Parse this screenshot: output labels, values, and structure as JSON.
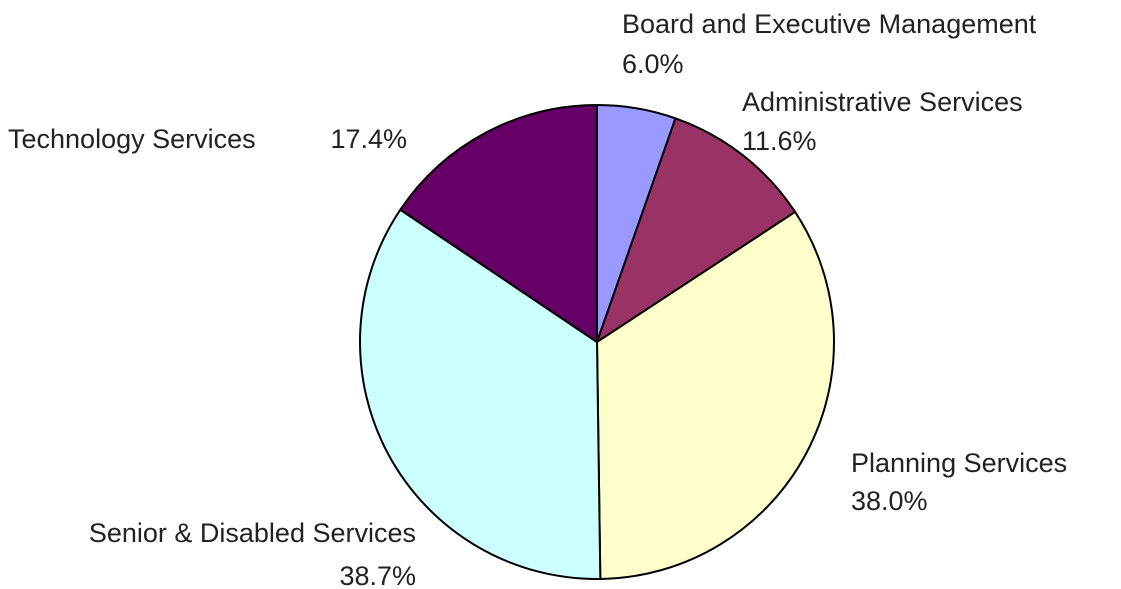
{
  "chart_data": {
    "type": "pie",
    "categories": [
      "Board and Executive Management",
      "Administrative Services",
      "Planning Services",
      "Senior & Disabled Services",
      "Technology Services"
    ],
    "values": [
      6.0,
      11.6,
      38.0,
      38.7,
      17.4
    ],
    "value_labels": [
      "6.0%",
      "11.6%",
      "38.0%",
      "38.7%",
      "17.4%"
    ],
    "colors": [
      "#9999ff",
      "#993366",
      "#ffffcc",
      "#ccffff",
      "#660066"
    ]
  }
}
